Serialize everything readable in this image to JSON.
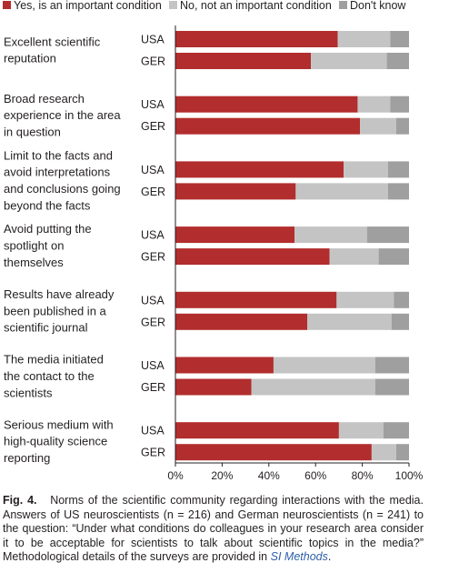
{
  "chart_data": {
    "type": "bar",
    "orientation": "horizontal",
    "stacked": true,
    "series_names": [
      "Yes, is an important condition",
      "No, not an important condition",
      "Don't know"
    ],
    "colors": [
      "#b22d2d",
      "#c4c4c4",
      "#9f9f9f"
    ],
    "legend_position": "top",
    "xlim": [
      0,
      100
    ],
    "xticks": [
      "0%",
      "20%",
      "40%",
      "60%",
      "80%",
      "100%"
    ],
    "grid": false,
    "groups": [
      {
        "lines": [
          "Excellent scientific",
          "reputation"
        ],
        "bars": [
          {
            "country": "USA",
            "values": [
              69.5,
              22.5,
              8.0
            ]
          },
          {
            "country": "GER",
            "values": [
              58.0,
              32.5,
              9.5
            ]
          }
        ]
      },
      {
        "lines": [
          "Broad research",
          "experience in the area",
          "in question"
        ],
        "bars": [
          {
            "country": "USA",
            "values": [
              78.0,
              14.0,
              8.0
            ]
          },
          {
            "country": "GER",
            "values": [
              79.0,
              15.5,
              5.5
            ]
          }
        ]
      },
      {
        "lines": [
          "Limit to the facts and",
          "avoid interpretations",
          "and conclusions going",
          "beyond the facts"
        ],
        "bars": [
          {
            "country": "USA",
            "values": [
              72.0,
              19.0,
              9.0
            ]
          },
          {
            "country": "GER",
            "values": [
              51.5,
              39.5,
              9.0
            ]
          }
        ]
      },
      {
        "lines": [
          "Avoid putting the",
          "spotlight on",
          "themselves"
        ],
        "bars": [
          {
            "country": "USA",
            "values": [
              51.0,
              31.0,
              18.0
            ]
          },
          {
            "country": "GER",
            "values": [
              66.0,
              21.0,
              13.0
            ]
          }
        ]
      },
      {
        "lines": [
          "Results have already",
          "been published in a",
          "scientific journal"
        ],
        "bars": [
          {
            "country": "USA",
            "values": [
              69.0,
              24.5,
              6.5
            ]
          },
          {
            "country": "GER",
            "values": [
              56.5,
              36.0,
              7.5
            ]
          }
        ]
      },
      {
        "lines": [
          "The media initiated",
          "the contact to the",
          "scientists"
        ],
        "bars": [
          {
            "country": "USA",
            "values": [
              42.0,
              43.5,
              14.5
            ]
          },
          {
            "country": "GER",
            "values": [
              32.5,
              53.0,
              14.5
            ]
          }
        ]
      },
      {
        "lines": [
          "Serious medium with",
          "high-quality science",
          "reporting"
        ],
        "bars": [
          {
            "country": "USA",
            "values": [
              70.0,
              19.0,
              11.0
            ]
          },
          {
            "country": "GER",
            "values": [
              84.0,
              10.5,
              5.5
            ]
          }
        ]
      }
    ]
  },
  "caption": {
    "fig_label": "Fig. 4.",
    "text": "Norms of the scientific community regarding interactions with the media. Answers of US neuroscientists (n = 216) and German neuroscientists (n = 241) to the question: “Under what conditions do colleagues in your research area consider it to be acceptable for scientists to talk about scientific topics in the media?” Methodological details of the surveys are provided in",
    "link": "SI Methods",
    "end": "."
  }
}
